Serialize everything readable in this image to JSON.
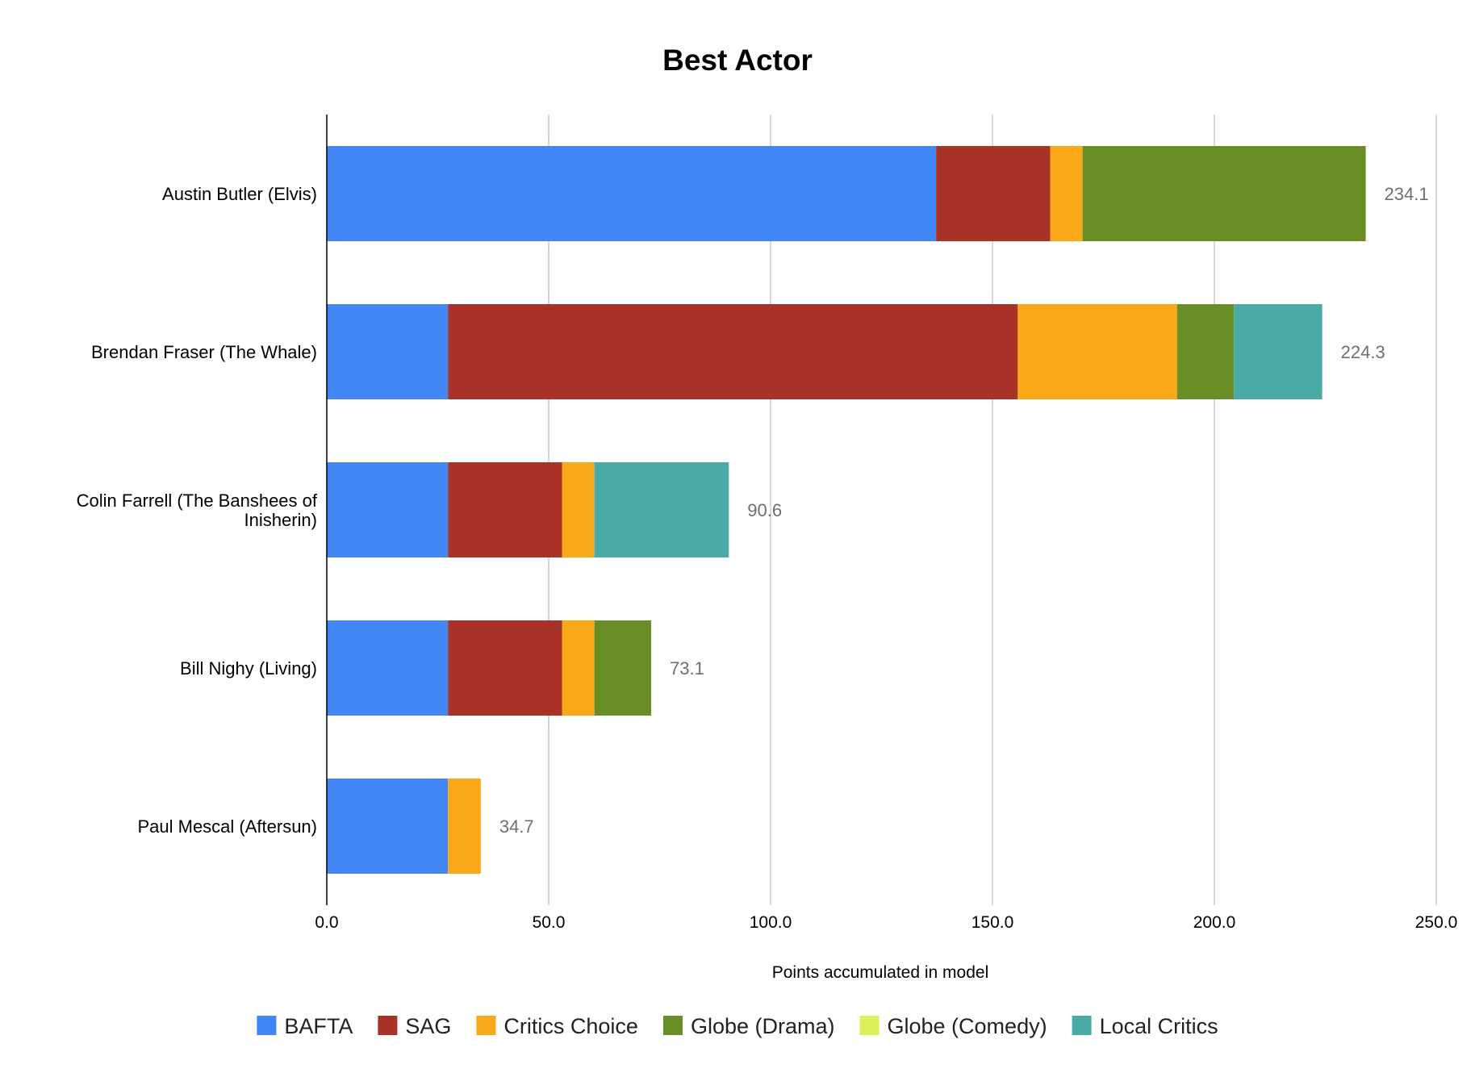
{
  "chart_data": {
    "type": "bar",
    "orientation": "horizontal",
    "stacked": true,
    "title": "Best Actor",
    "xlabel": "Points accumulated in model",
    "ylabel": "",
    "xlim": [
      0,
      250
    ],
    "x_ticks": [
      "0.0",
      "50.0",
      "100.0",
      "150.0",
      "200.0",
      "250.0"
    ],
    "grid": true,
    "legend_position": "bottom",
    "categories": [
      [
        "Austin Butler (Elvis)"
      ],
      [
        "Brendan Fraser (The Whale)"
      ],
      [
        "Colin Farrell (The Banshees of",
        "Inisherin)"
      ],
      [
        "Bill Nighy (Living)"
      ],
      [
        "Paul Mescal (Aftersun)"
      ]
    ],
    "series": [
      {
        "name": "BAFTA",
        "color": "#4285f4",
        "values": [
          137.3,
          27.3,
          27.3,
          27.3,
          27.3
        ]
      },
      {
        "name": "SAG",
        "color": "#a83228",
        "values": [
          25.7,
          128.4,
          25.7,
          25.7,
          0
        ]
      },
      {
        "name": "Critics Choice",
        "color": "#f9a818",
        "values": [
          7.3,
          35.9,
          7.3,
          7.3,
          7.4
        ]
      },
      {
        "name": "Globe (Drama)",
        "color": "#6a8e27",
        "values": [
          63.8,
          12.8,
          0,
          12.8,
          0
        ]
      },
      {
        "name": "Globe (Comedy)",
        "color": "#ddf05a",
        "values": [
          0,
          0,
          0,
          0,
          0
        ]
      },
      {
        "name": "Local Critics",
        "color": "#4aaaa5",
        "values": [
          0,
          19.9,
          30.3,
          0,
          0
        ]
      }
    ],
    "totals": [
      "234.1",
      "224.3",
      "90.6",
      "73.1",
      "34.7"
    ]
  }
}
